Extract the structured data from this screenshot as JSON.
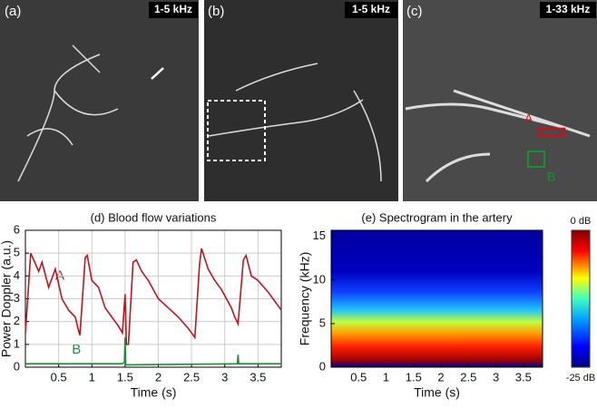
{
  "images": [
    {
      "label": "(a)",
      "band": "1-5 kHz"
    },
    {
      "label": "(b)",
      "band": "1-5 kHz"
    },
    {
      "label": "(c)",
      "band": "1-33 kHz",
      "annotations": [
        "A",
        "B"
      ]
    }
  ],
  "chart_data": [
    {
      "type": "line",
      "title": "(d) Blood flow variations",
      "xlabel": "Time (s)",
      "ylabel": "Power Doppler (a.u.)",
      "xlim": [
        0,
        3.85
      ],
      "ylim": [
        0,
        6
      ],
      "xticks": [
        0.5,
        1,
        1.5,
        2,
        2.5,
        3,
        3.5
      ],
      "yticks": [
        0,
        1,
        2,
        3,
        4,
        5,
        6
      ],
      "grid": true,
      "series": [
        {
          "name": "A",
          "color": "#c0141e",
          "x": [
            0,
            0.08,
            0.2,
            0.25,
            0.35,
            0.45,
            0.55,
            0.65,
            0.75,
            0.8,
            0.82,
            0.9,
            0.93,
            1.0,
            1.1,
            1.2,
            1.3,
            1.4,
            1.46,
            1.5,
            1.52,
            1.55,
            1.62,
            1.67,
            1.75,
            1.85,
            2.0,
            2.15,
            2.3,
            2.45,
            2.55,
            2.62,
            2.65,
            2.75,
            2.85,
            2.95,
            3.1,
            3.15,
            3.2,
            3.28,
            3.32,
            3.4,
            3.5,
            3.65,
            3.75,
            3.85
          ],
          "values": [
            1.5,
            5.0,
            4.2,
            4.6,
            3.5,
            4.3,
            3.0,
            2.5,
            2.2,
            1.6,
            1.4,
            4.8,
            4.9,
            3.8,
            3.5,
            2.6,
            2.2,
            1.8,
            1.5,
            3.2,
            1.0,
            1.0,
            4.6,
            4.7,
            4.2,
            3.8,
            3.0,
            2.6,
            2.2,
            1.7,
            1.3,
            4.5,
            5.2,
            4.3,
            3.8,
            3.4,
            2.6,
            2.2,
            1.9,
            4.7,
            4.9,
            4.0,
            3.8,
            3.3,
            2.9,
            2.5
          ]
        },
        {
          "name": "B",
          "color": "#1e8c32",
          "x": [
            0,
            1.45,
            1.49,
            1.5,
            1.51,
            3.19,
            3.2,
            3.21,
            3.85
          ],
          "values": [
            0.15,
            0.15,
            0.2,
            1.3,
            0.1,
            0.15,
            0.55,
            0.15,
            0.15
          ]
        }
      ]
    },
    {
      "type": "spectrogram",
      "title": "(e) Spectrogram in the artery",
      "xlabel": "Time (s)",
      "ylabel": "Frequency (kHz)",
      "xlim": [
        0,
        3.85
      ],
      "ylim": [
        0,
        15.7
      ],
      "xticks": [
        0.5,
        1,
        1.5,
        2,
        2.5,
        3,
        3.5
      ],
      "yticks": [
        0,
        5,
        10,
        15
      ],
      "colorbar": [
        "0 dB",
        "-25 dB"
      ]
    }
  ]
}
